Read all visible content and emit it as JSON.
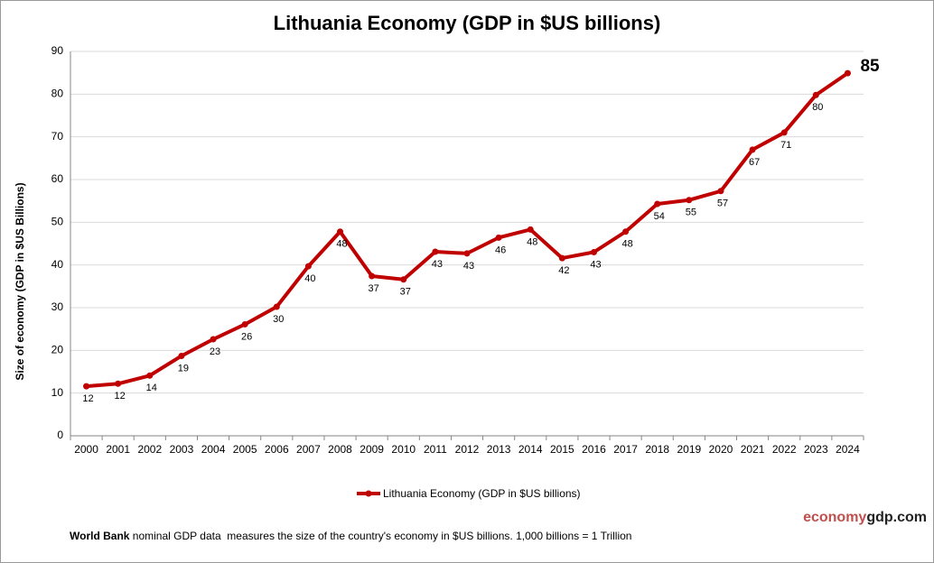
{
  "chart_data": {
    "type": "line",
    "title": "Lithuania Economy (GDP in $US billions)",
    "y_label": "Size of economy (GDP in $US Billions)",
    "categories": [
      "2000",
      "2001",
      "2002",
      "2003",
      "2004",
      "2005",
      "2006",
      "2007",
      "2008",
      "2009",
      "2010",
      "2011",
      "2012",
      "2013",
      "2014",
      "2015",
      "2016",
      "2017",
      "2018",
      "2019",
      "2020",
      "2021",
      "2022",
      "2023",
      "2024"
    ],
    "series": [
      {
        "name": "Lithuania Economy (GDP in $US billions)",
        "color": "#c00000",
        "values": [
          11.6,
          12.2,
          14.1,
          18.7,
          22.6,
          26.1,
          30.2,
          39.7,
          47.8,
          37.4,
          36.6,
          43.1,
          42.7,
          46.4,
          48.3,
          41.6,
          43.0,
          47.8,
          54.3,
          55.2,
          57.3,
          67.0,
          71.0,
          79.8,
          84.9
        ],
        "value_labels": [
          "12",
          "12",
          "14",
          "19",
          "23",
          "26",
          "30",
          "40",
          "48",
          "37",
          "37",
          "43",
          "43",
          "46",
          "48",
          "42",
          "43",
          "48",
          "54",
          "55",
          "57",
          "67",
          "71",
          "80",
          "85"
        ]
      }
    ],
    "ylim": [
      0,
      90
    ],
    "yticks": [
      0,
      10,
      20,
      30,
      40,
      50,
      60,
      70,
      80,
      90
    ],
    "grid": true,
    "footnote": {
      "bold": "World Bank",
      "text": " nominal GDP data  measures the size of the country's economy in $US billions. 1,000 billions = 1 Trillion"
    },
    "watermark": {
      "part1": "economy",
      "part2": "gdp.com"
    }
  }
}
